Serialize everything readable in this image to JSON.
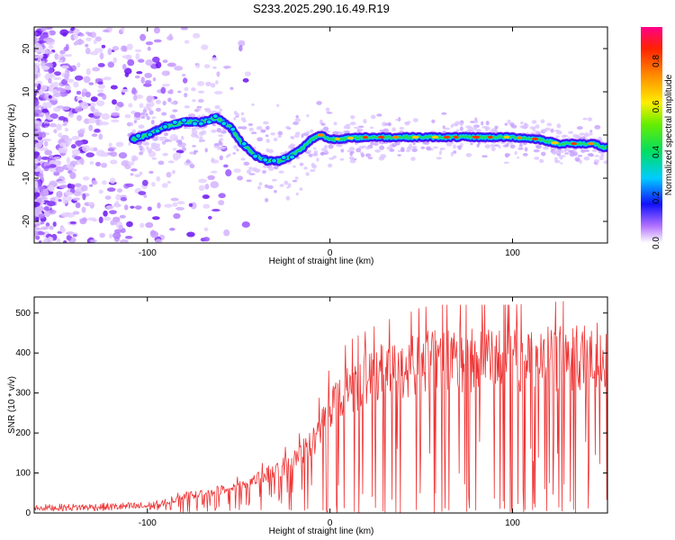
{
  "title": "S233.2025.290.16.49.R19",
  "chart_data": [
    {
      "type": "heatmap",
      "xlabel": "Height of straight line (km)",
      "ylabel": "Frequency (Hz)",
      "xlim": [
        -162,
        152
      ],
      "ylim": [
        -25,
        25
      ],
      "x_ticks": [
        -100,
        0,
        100
      ],
      "y_ticks": [
        -20,
        -10,
        0,
        10,
        20
      ],
      "colorbar": {
        "label": "Normalized spectral amplitude",
        "range": [
          0.0,
          0.95
        ],
        "ticks": [
          "0.0",
          "0.2",
          "0.4",
          "0.6",
          "0.8"
        ]
      },
      "ridge": {
        "x": [
          -108,
          -100,
          -90,
          -80,
          -70,
          -62,
          -55,
          -48,
          -40,
          -34,
          -28,
          -22,
          -15,
          -10,
          -5,
          0,
          20,
          40,
          60,
          80,
          100,
          115,
          125,
          135,
          145,
          150
        ],
        "y": [
          -1,
          0,
          2,
          3,
          3,
          4,
          2,
          -2,
          -5,
          -6,
          -6,
          -5,
          -3,
          -1,
          0,
          -1,
          -0.5,
          -0.5,
          -0.5,
          -0.5,
          -0.5,
          -1,
          -2,
          -2,
          -2,
          -3
        ]
      }
    },
    {
      "type": "line",
      "xlabel": "Height of straight line (km)",
      "ylabel": "SNR (10 * v/v)",
      "xlim": [
        -162,
        152
      ],
      "ylim": [
        0,
        540
      ],
      "x_ticks": [
        -100,
        0,
        100
      ],
      "y_ticks": [
        0,
        100,
        200,
        300,
        400,
        500
      ],
      "color": "#ee3333",
      "envelope": {
        "x": [
          -162,
          -120,
          -100,
          -90,
          -80,
          -70,
          -60,
          -50,
          -40,
          -30,
          -20,
          -10,
          0,
          10,
          20,
          30,
          40,
          50,
          60,
          80,
          100,
          120,
          140,
          152
        ],
        "y": [
          15,
          18,
          20,
          25,
          45,
          50,
          60,
          70,
          90,
          110,
          140,
          180,
          280,
          330,
          350,
          370,
          380,
          395,
          400,
          400,
          400,
          405,
          410,
          420
        ]
      }
    }
  ]
}
